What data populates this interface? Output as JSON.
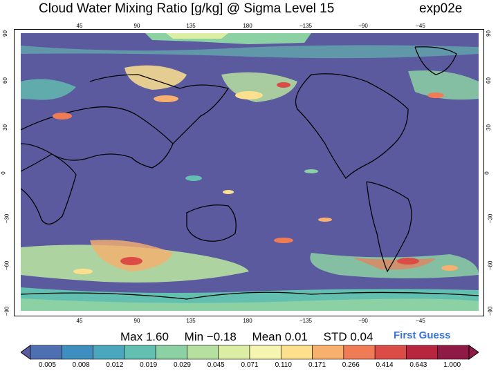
{
  "header": {
    "title": "Cloud Water Mixing Ratio [g/kg]  @ Sigma Level 15",
    "experiment": "exp02e"
  },
  "axes": {
    "lon_ticks": [
      "45",
      "90",
      "135",
      "180",
      "−135",
      "−90",
      "−45"
    ],
    "lat_ticks": [
      "90",
      "60",
      "30",
      "0",
      "−30",
      "−60",
      "−90"
    ]
  },
  "stats": {
    "max": "Max 1.60",
    "min": "Min −0.18",
    "mean": "Mean 0.01",
    "std": "STD 0.04"
  },
  "label": "First Guess",
  "colorbar": {
    "labels": [
      "0.005",
      "0.008",
      "0.012",
      "0.019",
      "0.029",
      "0.045",
      "0.071",
      "0.110",
      "0.171",
      "0.266",
      "0.414",
      "0.643",
      "1.000"
    ],
    "colors": [
      "#4f6fb3",
      "#3e8ec0",
      "#4aa7bd",
      "#63bfb0",
      "#8bd1a4",
      "#b5e0a0",
      "#dbeea3",
      "#f6f5b0",
      "#fde08e",
      "#f8b06e",
      "#ef7c55",
      "#dc4c46",
      "#b8253f",
      "#8e1a45"
    ],
    "under_color": "#5a5aa0",
    "over_color": "#8e1a45"
  },
  "map": {
    "background_color": "#5c5a9f"
  }
}
